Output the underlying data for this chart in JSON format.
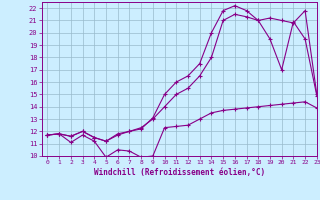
{
  "xlabel": "Windchill (Refroidissement éolien,°C)",
  "bg_color": "#cceeff",
  "line_color": "#880088",
  "grid_color": "#99bbcc",
  "xlim": [
    -0.5,
    23
  ],
  "ylim": [
    10,
    22.5
  ],
  "xticks": [
    0,
    1,
    2,
    3,
    4,
    5,
    6,
    7,
    8,
    9,
    10,
    11,
    12,
    13,
    14,
    15,
    16,
    17,
    18,
    19,
    20,
    21,
    22,
    23
  ],
  "yticks": [
    10,
    11,
    12,
    13,
    14,
    15,
    16,
    17,
    18,
    19,
    20,
    21,
    22
  ],
  "line1_x": [
    0,
    1,
    2,
    3,
    4,
    5,
    6,
    7,
    8,
    9,
    10,
    11,
    12,
    13,
    14,
    15,
    16,
    17,
    18,
    19,
    20,
    21,
    22,
    23
  ],
  "line1_y": [
    11.7,
    11.8,
    11.1,
    11.7,
    11.2,
    9.9,
    10.5,
    10.4,
    9.9,
    10.0,
    12.3,
    12.4,
    12.5,
    13.0,
    13.5,
    13.7,
    13.8,
    13.9,
    14.0,
    14.1,
    14.2,
    14.3,
    14.4,
    13.9
  ],
  "line2_x": [
    0,
    1,
    2,
    3,
    4,
    5,
    6,
    7,
    8,
    9,
    10,
    11,
    12,
    13,
    14,
    15,
    16,
    17,
    18,
    19,
    20,
    21,
    22,
    23
  ],
  "line2_y": [
    11.7,
    11.8,
    11.6,
    12.0,
    11.5,
    11.2,
    11.8,
    12.0,
    12.3,
    13.0,
    14.0,
    15.0,
    15.5,
    16.5,
    18.0,
    21.0,
    21.5,
    21.3,
    21.0,
    19.5,
    17.0,
    20.9,
    19.5,
    14.9
  ],
  "line3_x": [
    0,
    1,
    2,
    3,
    4,
    5,
    6,
    7,
    8,
    9,
    10,
    11,
    12,
    13,
    14,
    15,
    16,
    17,
    18,
    19,
    20,
    21,
    22,
    23
  ],
  "line3_y": [
    11.7,
    11.8,
    11.6,
    12.0,
    11.5,
    11.2,
    11.7,
    12.0,
    12.2,
    13.1,
    15.0,
    16.0,
    16.5,
    17.5,
    20.0,
    21.8,
    22.2,
    21.8,
    21.0,
    21.2,
    21.0,
    20.8,
    21.8,
    15.0
  ],
  "marker": "+",
  "markersize": 3.5,
  "linewidth": 0.8
}
